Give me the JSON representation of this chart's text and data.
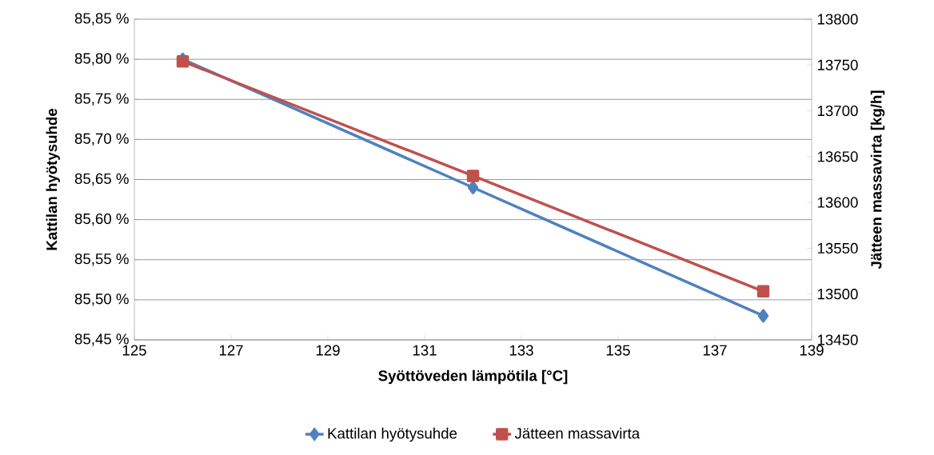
{
  "chart_data": {
    "type": "line",
    "xlabel": "Syöttöveden lämpötila  [°C]",
    "ylabel": "Kattilan hyötysuhde",
    "y2label": "Jätteen massavirta  [kg/h]",
    "x": [
      126,
      132,
      138
    ],
    "series": [
      {
        "name": "Kattilan hyötysuhde",
        "color": "#4f81bd",
        "marker": "diamond",
        "values": [
          85.8,
          85.64,
          85.48
        ]
      },
      {
        "name": "Jätteen massavirta",
        "color": "#c0504d",
        "marker": "square",
        "axis": "y2",
        "values": [
          13754,
          13629,
          13503
        ]
      }
    ],
    "xlim": [
      125,
      139
    ],
    "xticks": [
      125,
      127,
      129,
      131,
      133,
      135,
      137,
      139
    ],
    "ylim": [
      85.45,
      85.85
    ],
    "yticks": [
      {
        "value": 85.45,
        "label": "85,45 %"
      },
      {
        "value": 85.5,
        "label": "85,50 %"
      },
      {
        "value": 85.55,
        "label": "85,55 %"
      },
      {
        "value": 85.6,
        "label": "85,60 %"
      },
      {
        "value": 85.65,
        "label": "85,65 %"
      },
      {
        "value": 85.7,
        "label": "85,70 %"
      },
      {
        "value": 85.75,
        "label": "85,75 %"
      },
      {
        "value": 85.8,
        "label": "85,80 %"
      },
      {
        "value": 85.85,
        "label": "85,85 %"
      }
    ],
    "y2lim": [
      13450,
      13800
    ],
    "y2ticks": [
      13450,
      13500,
      13550,
      13600,
      13650,
      13700,
      13750,
      13800
    ],
    "grid": "y",
    "legend": "bottom"
  }
}
